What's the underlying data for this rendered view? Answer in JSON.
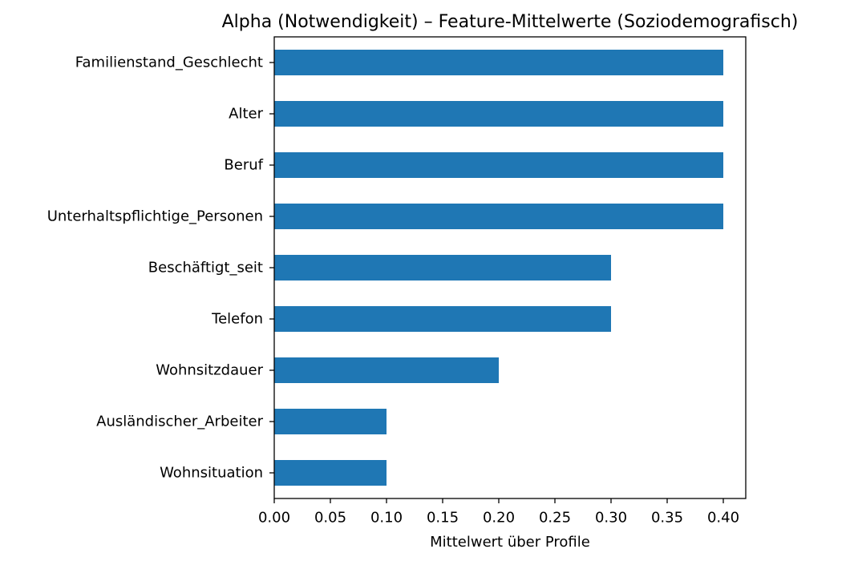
{
  "chart_data": {
    "type": "bar",
    "orientation": "horizontal",
    "title": "Alpha (Notwendigkeit) – Feature-Mittelwerte (Soziodemografisch)",
    "xlabel": "Mittelwert über Profile",
    "ylabel": "",
    "categories": [
      "Familienstand_Geschlecht",
      "Alter",
      "Beruf",
      "Unterhaltspflichtige_Personen",
      "Beschäftigt_seit",
      "Telefon",
      "Wohnsitzdauer",
      "Ausländischer_Arbeiter",
      "Wohnsituation"
    ],
    "values": [
      0.4,
      0.4,
      0.4,
      0.4,
      0.3,
      0.3,
      0.2,
      0.1,
      0.1
    ],
    "xlim": [
      0,
      0.42
    ],
    "xticks": [
      0.0,
      0.05,
      0.1,
      0.15,
      0.2,
      0.25,
      0.3,
      0.35,
      0.4
    ],
    "xtick_labels": [
      "0.00",
      "0.05",
      "0.10",
      "0.15",
      "0.20",
      "0.25",
      "0.30",
      "0.35",
      "0.40"
    ],
    "bar_color": "#1f77b4",
    "grid": false,
    "legend": false
  }
}
